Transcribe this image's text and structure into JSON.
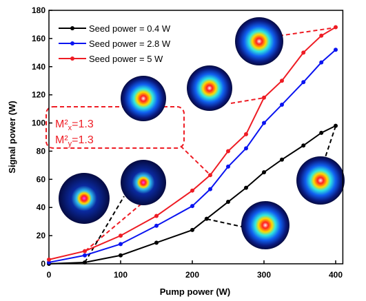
{
  "chart_data": {
    "type": "line",
    "xlabel": "Pump power (W)",
    "ylabel": "Signal power (W)",
    "xlim": [
      0,
      410
    ],
    "ylim": [
      0,
      180
    ],
    "xticks": [
      0,
      100,
      200,
      300,
      400
    ],
    "yticks": [
      0,
      20,
      40,
      60,
      80,
      100,
      120,
      140,
      160,
      180
    ],
    "legend": "upper left",
    "annotation": [
      {
        "base": "M²",
        "sub": "x",
        "rest": "=1.3"
      },
      {
        "base": "M²",
        "sub": "y",
        "rest": "=1.3"
      }
    ],
    "series": [
      {
        "name": "Seed power = 0.4 W",
        "color": "#000000",
        "x": [
          0,
          50,
          100,
          150,
          200,
          220,
          250,
          275,
          300,
          325,
          355,
          380,
          400
        ],
        "values": [
          0,
          1,
          6,
          15,
          24,
          32,
          44,
          54,
          65,
          74,
          84,
          93,
          98
        ]
      },
      {
        "name": "Seed power = 2.8 W",
        "color": "#0a14f0",
        "x": [
          0,
          50,
          100,
          150,
          200,
          225,
          250,
          275,
          300,
          325,
          355,
          380,
          400
        ],
        "values": [
          1,
          6,
          14,
          27,
          41,
          53,
          69,
          82,
          100,
          113,
          129,
          143,
          152
        ]
      },
      {
        "name": "Seed power = 5 W",
        "color": "#ee1c24",
        "x": [
          0,
          50,
          100,
          150,
          200,
          225,
          250,
          275,
          300,
          325,
          355,
          380,
          400
        ],
        "values": [
          3,
          9,
          20,
          34,
          52,
          63,
          80,
          92,
          118,
          130,
          150,
          162,
          168
        ]
      }
    ]
  }
}
